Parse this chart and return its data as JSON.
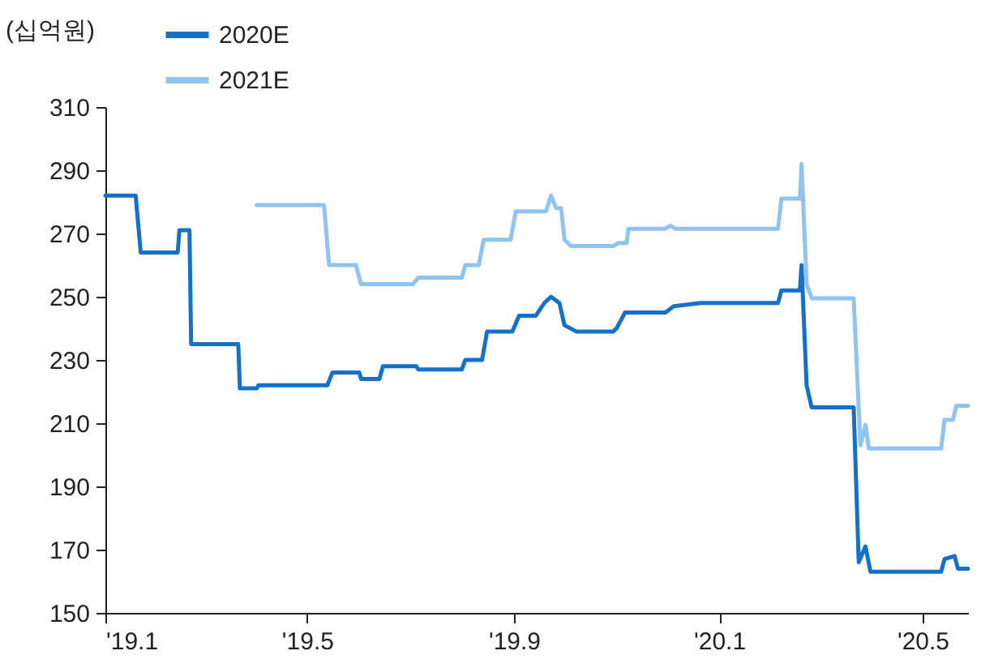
{
  "chart_data": {
    "type": "line",
    "ylabel": "(십억원)",
    "xlim": [
      "2019-01-01",
      "2020-05-28"
    ],
    "xticks": [
      {
        "value": "2019-01-01",
        "label": "'19.1"
      },
      {
        "value": "2019-05-01",
        "label": "'19.5"
      },
      {
        "value": "2019-09-01",
        "label": "'19.9"
      },
      {
        "value": "2020-01-01",
        "label": "'20.1"
      },
      {
        "value": "2020-05-01",
        "label": "'20.5"
      }
    ],
    "ylim": [
      150,
      310
    ],
    "yticks": [
      150,
      170,
      190,
      210,
      230,
      250,
      270,
      290,
      310
    ],
    "grid": false,
    "legend": "top left",
    "series": [
      {
        "name": "2020E",
        "color": "#1470c8",
        "x": [
          "2019-01-01",
          "2019-01-19",
          "2019-01-22",
          "2019-02-13",
          "2019-02-14",
          "2019-02-20",
          "2019-02-21",
          "2019-03-21",
          "2019-03-22",
          "2019-04-01",
          "2019-04-02",
          "2019-05-13",
          "2019-05-16",
          "2019-06-01",
          "2019-06-02",
          "2019-06-13",
          "2019-06-15",
          "2019-07-05",
          "2019-07-06",
          "2019-08-01",
          "2019-08-03",
          "2019-08-13",
          "2019-08-16",
          "2019-08-31",
          "2019-09-04",
          "2019-09-14",
          "2019-09-19",
          "2019-09-23",
          "2019-09-28",
          "2019-10-01",
          "2019-10-08",
          "2019-10-30",
          "2019-11-01",
          "2019-11-06",
          "2019-11-30",
          "2019-12-05",
          "2019-12-21",
          "2020-02-05",
          "2020-02-07",
          "2020-02-18",
          "2020-02-19",
          "2020-02-22",
          "2020-02-25",
          "2020-03-21",
          "2020-03-24",
          "2020-03-28",
          "2020-03-31",
          "2020-05-12",
          "2020-05-14",
          "2020-05-20",
          "2020-05-22",
          "2020-05-28"
        ],
        "values": [
          282,
          282,
          264,
          264,
          271,
          271,
          235,
          235,
          221,
          221,
          222,
          222,
          226,
          226,
          224,
          224,
          228,
          228,
          227,
          227,
          230,
          230,
          239,
          239,
          244,
          244,
          248,
          250,
          248,
          241,
          239,
          239,
          240,
          245,
          245,
          247,
          248,
          248,
          252,
          252,
          260,
          222,
          215,
          215,
          166,
          171,
          163,
          163,
          167,
          168,
          164,
          164
        ]
      },
      {
        "name": "2021E",
        "color": "#90c4f0",
        "x": [
          "2019-04-01",
          "2019-05-11",
          "2019-05-14",
          "2019-05-30",
          "2019-06-02",
          "2019-07-03",
          "2019-07-06",
          "2019-08-01",
          "2019-08-03",
          "2019-08-11",
          "2019-08-14",
          "2019-08-30",
          "2019-09-02",
          "2019-09-20",
          "2019-09-23",
          "2019-09-26",
          "2019-09-29",
          "2019-10-01",
          "2019-10-05",
          "2019-10-30",
          "2019-11-02",
          "2019-11-07",
          "2019-11-08",
          "2019-11-30",
          "2019-12-03",
          "2019-12-06",
          "2020-02-05",
          "2020-02-07",
          "2020-02-18",
          "2020-02-19",
          "2020-02-22",
          "2020-02-25",
          "2020-03-21",
          "2020-03-25",
          "2020-03-28",
          "2020-03-30",
          "2020-05-12",
          "2020-05-14",
          "2020-05-19",
          "2020-05-21",
          "2020-05-28"
        ],
        "values": [
          279,
          279,
          260,
          260,
          254,
          254,
          256,
          256,
          260,
          260,
          268,
          268,
          277,
          277,
          282,
          278,
          278,
          268,
          266,
          266,
          267,
          267,
          271.5,
          271.5,
          272.5,
          271.5,
          271.5,
          281,
          281,
          292,
          254,
          249.5,
          249.5,
          203,
          209.5,
          202,
          202,
          211,
          211,
          215.5,
          215.5
        ]
      }
    ]
  }
}
